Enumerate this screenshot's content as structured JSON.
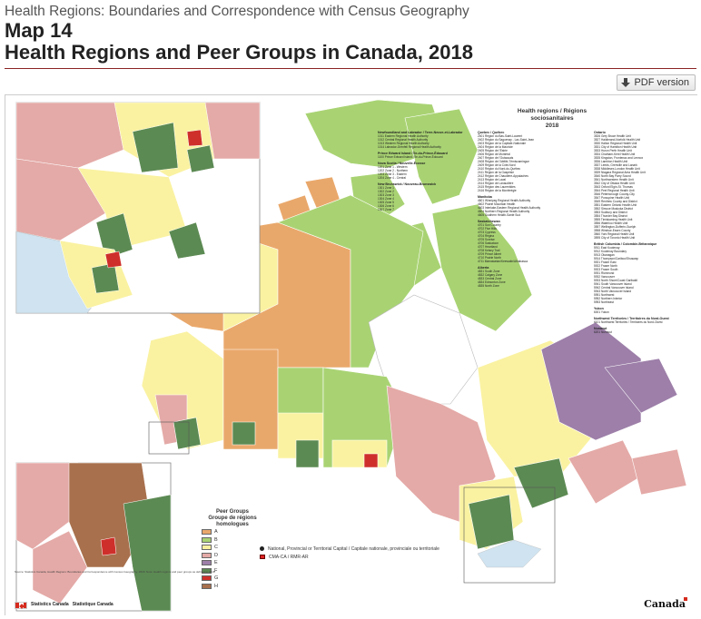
{
  "header": {
    "breadcrumb": "Health Regions: Boundaries and Correspondence with Census Geography",
    "map_number": "Map 14",
    "title": "Health Regions and Peer Groups in Canada, 2018"
  },
  "toolbar": {
    "pdf_label": "PDF version",
    "pdf_icon": "download-icon"
  },
  "map": {
    "region_list_title_en": "Health regions / Régions sociosanitaires",
    "region_list_year": "2018",
    "legend_title_en": "Peer Groups",
    "legend_title_fr": "Groupe de régions homologues",
    "peer_groups": [
      {
        "label": "A",
        "color": "#e9a86b"
      },
      {
        "label": "B",
        "color": "#a9d373"
      },
      {
        "label": "C",
        "color": "#faf2a1"
      },
      {
        "label": "D",
        "color": "#e4aaa7"
      },
      {
        "label": "E",
        "color": "#9d7fa9"
      },
      {
        "label": "F",
        "color": "#5c8a53"
      },
      {
        "label": "G",
        "color": "#cf2f2b"
      },
      {
        "label": "H",
        "color": "#a8704d"
      }
    ],
    "symbols": {
      "capital_label": "National, Provincial or Territorial Capital / Capitale nationale, provinciale ou territoriale",
      "cma_label": "CMA-CA / RMR-AR"
    },
    "region_sections": [
      {
        "title": "Newfoundland and Labrador / Terre-Neuve-et-Labrador",
        "items": [
          "1011 Eastern Regional Health Authority",
          "1012 Central Regional Health Authority",
          "1013 Western Regional Health Authority",
          "1014 Labrador-Grenfell Regional Health Authority"
        ]
      },
      {
        "title": "Prince Edward Island / Île-du-Prince-Édouard",
        "items": [
          "1100 Prince Edward Island / Île-du-Prince-Édouard"
        ]
      },
      {
        "title": "Nova Scotia / Nouvelle-Écosse",
        "items": [
          "1201 Zone 1 - Western",
          "1202 Zone 2 - Northern",
          "1203 Zone 3 - Eastern",
          "1204 Zone 4 - Central"
        ]
      },
      {
        "title": "New Brunswick / Nouveau-Brunswick",
        "items": [
          "1301 Zone 1",
          "1302 Zone 2",
          "1303 Zone 3",
          "1304 Zone 4",
          "1305 Zone 5",
          "1306 Zone 6",
          "1307 Zone 7"
        ]
      },
      {
        "title": "Quebec / Québec",
        "items": [
          "2401 Région du Bas-Saint-Laurent",
          "2402 Région du Saguenay - Lac-Saint-Jean",
          "2403 Région de la Capitale-Nationale",
          "2404 Région de la Mauricie",
          "2405 Région de l'Estrie",
          "2406 Région de Montréal",
          "2407 Région de l'Outaouais",
          "2408 Région de l'Abitibi-Témiscamingue",
          "2409 Région de la Côte-Nord",
          "2410 Région du Nord-du-Québec",
          "2411 Région de la Gaspésie",
          "2412 Région de Chaudière-Appalaches",
          "2413 Région de Laval",
          "2414 Région de Lanaudière",
          "2415 Région des Laurentides",
          "2416 Région de la Montérégie"
        ]
      },
      {
        "title": "Manitoba",
        "items": [
          "4601 Winnipeg Regional Health Authority",
          "4602 Prairie Mountain Health",
          "4603 Interlake-Eastern Regional Health Authority",
          "4604 Northern Regional Health Authority",
          "4605 Southern Health-Santé Sud"
        ]
      },
      {
        "title": "Saskatchewan",
        "items": [
          "4701 Sun Country",
          "4702 Five Hills",
          "4703 Cypress",
          "4704 Regina",
          "4705 Sunrise",
          "4706 Saskatoon",
          "4707 Heartland",
          "4708 Kelsey Trail",
          "4709 Prince Albert",
          "4710 Prairie North",
          "4711 Mamawetan/Keewatin/Athabasca"
        ]
      },
      {
        "title": "Alberta",
        "items": [
          "4831 South Zone",
          "4832 Calgary Zone",
          "4833 Central Zone",
          "4834 Edmonton Zone",
          "4835 North Zone"
        ]
      },
      {
        "title": "Ontario",
        "items": [
          "3526 Grey Bruce Health Unit",
          "3527 Haldimand-Norfolk Health Unit",
          "3530 Halton Regional Health Unit",
          "3531 City of Hamilton Health Unit",
          "3533 Huron Perth Health Unit",
          "3534 Chatham-Kent Health Unit",
          "3535 Kingston, Frontenac and Lennox",
          "3536 Lambton Health Unit",
          "3537 Leeds, Grenville and Lanark",
          "3538 Middlesex-London Health Unit",
          "3539 Niagara Regional Area Health Unit",
          "3540 North Bay Parry Sound",
          "3541 Northwestern Health Unit",
          "3542 City of Ottawa Health Unit",
          "3543 Oxford Elgin-St. Thomas",
          "3544 Peel Regional Health Unit",
          "3546 Peterborough County-City",
          "3547 Porcupine Health Unit",
          "3549 Renfrew County and District",
          "3551 Eastern Ontario Health Unit",
          "3552 Simcoe Muskoka District",
          "3553 Sudbury and District",
          "3554 Thunder Bay District",
          "3555 Timiskaming Health Unit",
          "3556 Waterloo Health Unit",
          "3557 Wellington-Dufferin-Guelph",
          "3558 Windsor-Essex County",
          "3560 York Regional Health Unit",
          "3595 City of Toronto Health Unit"
        ]
      },
      {
        "title": "British Columbia / Colombie-Britannique",
        "items": [
          "5911 East Kootenay",
          "5912 Kootenay Boundary",
          "5913 Okanagan",
          "5914 Thompson/Cariboo/Shuswap",
          "5921 Fraser East",
          "5922 Fraser North",
          "5923 Fraser South",
          "5931 Richmond",
          "5932 Vancouver",
          "5933 North Shore/Coast Garibaldi",
          "5941 South Vancouver Island",
          "5942 Central Vancouver Island",
          "5943 North Vancouver Island",
          "5951 Northwest",
          "5952 Northern Interior",
          "5953 Northeast"
        ]
      },
      {
        "title": "Yukon",
        "items": [
          "6001 Yukon"
        ]
      },
      {
        "title": "Northwest Territories / Territoires du Nord-Ouest",
        "items": [
          "6101 Northwest Territories / Territoires du Nord-Ouest"
        ]
      },
      {
        "title": "Nunavut",
        "items": [
          "6201 Nunavut"
        ]
      }
    ],
    "footnote": "Source: Statistics Canada, Health Regions: Boundaries and Correspondence with Census Geography, 2018. Note: Health regions and peer groups as defined in 2018.",
    "footer": {
      "sc_en": "Statistics Canada",
      "sc_fr": "Statistique Canada",
      "wordmark": "Canada"
    }
  }
}
